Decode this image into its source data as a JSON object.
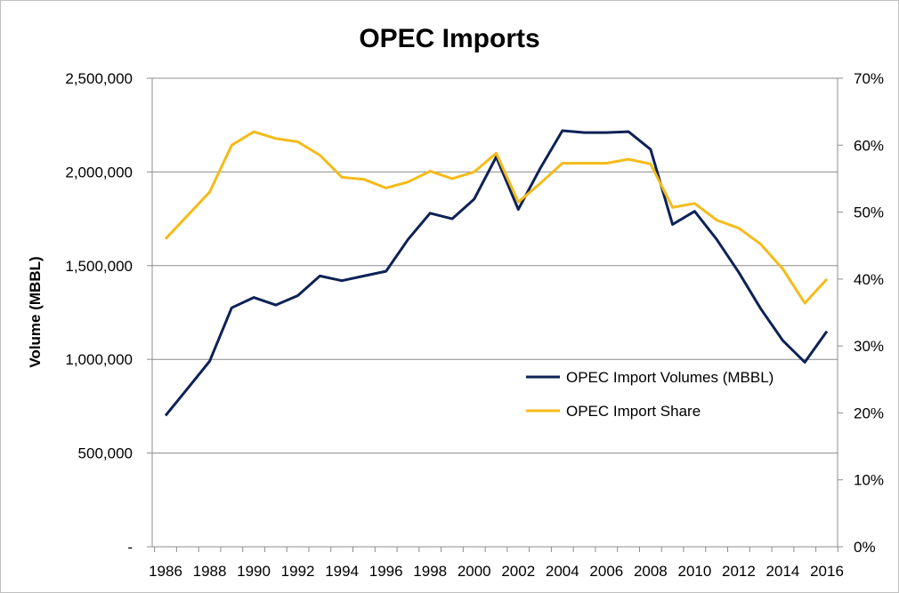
{
  "chart_data": {
    "type": "line",
    "title": "OPEC Imports",
    "ylabel": "Volume (MBBL)",
    "y2label": "",
    "xlabel": "",
    "x": [
      1986,
      1987,
      1988,
      1989,
      1990,
      1991,
      1992,
      1993,
      1994,
      1995,
      1996,
      1997,
      1998,
      1999,
      2000,
      2001,
      2002,
      2003,
      2004,
      2005,
      2006,
      2007,
      2008,
      2009,
      2010,
      2011,
      2012,
      2013,
      2014,
      2015,
      2016
    ],
    "x_tick_labels": [
      "1986",
      "1988",
      "1990",
      "1992",
      "1994",
      "1996",
      "1998",
      "2000",
      "2002",
      "2004",
      "2006",
      "2008",
      "2010",
      "2012",
      "2014",
      "2016"
    ],
    "ylim": [
      0,
      2500000
    ],
    "y_tick_labels": [
      "-",
      "500,000",
      "1,000,000",
      "1,500,000",
      "2,000,000",
      "2,500,000"
    ],
    "y2lim": [
      0,
      0.7
    ],
    "y2_tick_labels": [
      "0%",
      "10%",
      "20%",
      "30%",
      "40%",
      "50%",
      "60%",
      "70%"
    ],
    "grid": "horizontal",
    "legend_position": "lower-right",
    "series": [
      {
        "name": "OPEC Import Volumes (MBBL)",
        "axis": "left",
        "color": "#0d2256",
        "values": [
          700000,
          845000,
          990000,
          1275000,
          1330000,
          1290000,
          1340000,
          1445000,
          1420000,
          1445000,
          1470000,
          1640000,
          1780000,
          1750000,
          1855000,
          2080000,
          1800000,
          2020000,
          2220000,
          2210000,
          2210000,
          2215000,
          2120000,
          1720000,
          1790000,
          1640000,
          1465000,
          1270000,
          1100000,
          985000,
          1150000
        ]
      },
      {
        "name": "OPEC Import Share",
        "axis": "right",
        "color": "#f4bb19",
        "values": [
          0.46,
          0.495,
          0.53,
          0.6,
          0.62,
          0.61,
          0.605,
          0.585,
          0.552,
          0.549,
          0.536,
          0.545,
          0.561,
          0.55,
          0.56,
          0.588,
          0.515,
          0.543,
          0.573,
          0.573,
          0.573,
          0.579,
          0.572,
          0.507,
          0.513,
          0.488,
          0.476,
          0.452,
          0.415,
          0.364,
          0.4
        ]
      }
    ]
  }
}
